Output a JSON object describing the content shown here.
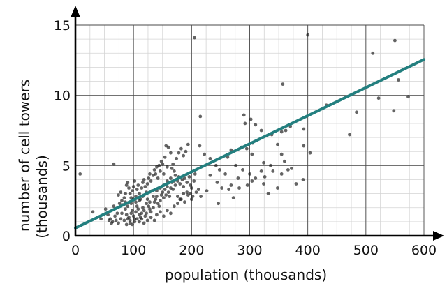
{
  "chart_data": {
    "type": "scatter",
    "xlabel": "population (thousands)",
    "ylabel": "number of cell towers",
    "ylabel_line2": "(thousands)",
    "xlim": [
      0,
      600
    ],
    "ylim": [
      0,
      15
    ],
    "x_ticks": [
      0,
      100,
      200,
      300,
      400,
      500,
      600
    ],
    "y_ticks": [
      0,
      5,
      10,
      15
    ],
    "grid": true,
    "colors": {
      "points": "#1a1a1a",
      "fit_line": "#237f7f",
      "major_grid": "#4a4a4a",
      "minor_grid": "#d4d4d4"
    },
    "fit_line": {
      "x": [
        0,
        600
      ],
      "y": [
        0.55,
        12.55
      ]
    },
    "points": [
      [
        8,
        4.4
      ],
      [
        205,
        14.1
      ],
      [
        400,
        14.3
      ],
      [
        512,
        13.0
      ],
      [
        550,
        13.9
      ],
      [
        556,
        11.1
      ],
      [
        573,
        9.9
      ],
      [
        522,
        9.8
      ],
      [
        548,
        8.9
      ],
      [
        484,
        8.8
      ],
      [
        472,
        7.2
      ],
      [
        432,
        9.3
      ],
      [
        357,
        10.8
      ],
      [
        215,
        8.5
      ],
      [
        290,
        8.6
      ],
      [
        302,
        8.3
      ],
      [
        292,
        8.0
      ],
      [
        310,
        7.9
      ],
      [
        320,
        7.5
      ],
      [
        338,
        7.2
      ],
      [
        355,
        7.4
      ],
      [
        362,
        7.5
      ],
      [
        370,
        7.8
      ],
      [
        393,
        7.6
      ],
      [
        393,
        6.4
      ],
      [
        348,
        6.5
      ],
      [
        355,
        5.8
      ],
      [
        360,
        5.3
      ],
      [
        336,
        5.0
      ],
      [
        340,
        4.6
      ],
      [
        366,
        4.7
      ],
      [
        372,
        4.8
      ],
      [
        355,
        4.4
      ],
      [
        320,
        4.6
      ],
      [
        326,
        4.2
      ],
      [
        324,
        5.2
      ],
      [
        304,
        5.8
      ],
      [
        295,
        6.2
      ],
      [
        305,
        6.6
      ],
      [
        286,
        6.3
      ],
      [
        268,
        6.1
      ],
      [
        262,
        5.6
      ],
      [
        276,
        5.0
      ],
      [
        288,
        4.7
      ],
      [
        300,
        4.4
      ],
      [
        310,
        4.1
      ],
      [
        296,
        3.6
      ],
      [
        282,
        3.4
      ],
      [
        264,
        3.3
      ],
      [
        252,
        3.4
      ],
      [
        244,
        3.8
      ],
      [
        232,
        4.3
      ],
      [
        242,
        5.0
      ],
      [
        232,
        5.5
      ],
      [
        222,
        5.8
      ],
      [
        214,
        6.4
      ],
      [
        246,
        2.3
      ],
      [
        226,
        3.2
      ],
      [
        216,
        2.8
      ],
      [
        272,
        2.7
      ],
      [
        268,
        3.6
      ],
      [
        280,
        4.1
      ],
      [
        258,
        4.4
      ],
      [
        348,
        3.4
      ],
      [
        380,
        3.7
      ],
      [
        392,
        4.0
      ],
      [
        404,
        5.9
      ],
      [
        324,
        3.7
      ],
      [
        248,
        4.7
      ],
      [
        332,
        3.0
      ],
      [
        304,
        3.9
      ],
      [
        66,
        5.1
      ],
      [
        30,
        1.7
      ],
      [
        44,
        1.2
      ],
      [
        52,
        1.9
      ],
      [
        58,
        1.1
      ],
      [
        62,
        0.9
      ],
      [
        68,
        1.4
      ],
      [
        72,
        1.6
      ],
      [
        66,
        2.1
      ],
      [
        76,
        2.3
      ],
      [
        82,
        2.2
      ],
      [
        86,
        1.9
      ],
      [
        88,
        1.5
      ],
      [
        92,
        1.3
      ],
      [
        94,
        1.1
      ],
      [
        96,
        1.6
      ],
      [
        98,
        1.8
      ],
      [
        100,
        1.4
      ],
      [
        102,
        1.2
      ],
      [
        104,
        1.7
      ],
      [
        106,
        2.1
      ],
      [
        108,
        1.9
      ],
      [
        110,
        1.5
      ],
      [
        112,
        1.3
      ],
      [
        114,
        1.6
      ],
      [
        116,
        2.0
      ],
      [
        118,
        1.8
      ],
      [
        120,
        1.4
      ],
      [
        122,
        2.3
      ],
      [
        124,
        2.6
      ],
      [
        126,
        2.1
      ],
      [
        128,
        1.9
      ],
      [
        130,
        1.7
      ],
      [
        134,
        2.0
      ],
      [
        136,
        2.4
      ],
      [
        138,
        2.6
      ],
      [
        140,
        2.8
      ],
      [
        142,
        2.3
      ],
      [
        144,
        2.1
      ],
      [
        146,
        2.5
      ],
      [
        148,
        2.9
      ],
      [
        150,
        3.1
      ],
      [
        152,
        2.7
      ],
      [
        154,
        3.3
      ],
      [
        156,
        2.9
      ],
      [
        158,
        3.5
      ],
      [
        160,
        3.1
      ],
      [
        162,
        2.8
      ],
      [
        164,
        3.4
      ],
      [
        166,
        3.8
      ],
      [
        168,
        3.3
      ],
      [
        172,
        3.6
      ],
      [
        176,
        3.9
      ],
      [
        178,
        4.2
      ],
      [
        180,
        3.7
      ],
      [
        184,
        4.0
      ],
      [
        186,
        3.5
      ],
      [
        188,
        4.1
      ],
      [
        192,
        3.8
      ],
      [
        196,
        4.2
      ],
      [
        198,
        3.6
      ],
      [
        200,
        3.4
      ],
      [
        204,
        3.9
      ],
      [
        206,
        4.4
      ],
      [
        208,
        3.1
      ],
      [
        212,
        3.3
      ],
      [
        84,
        2.7
      ],
      [
        86,
        3.0
      ],
      [
        88,
        3.6
      ],
      [
        90,
        3.8
      ],
      [
        92,
        3.4
      ],
      [
        94,
        3.0
      ],
      [
        96,
        2.7
      ],
      [
        98,
        3.2
      ],
      [
        100,
        3.5
      ],
      [
        102,
        3.9
      ],
      [
        104,
        2.8
      ],
      [
        106,
        3.3
      ],
      [
        108,
        3.6
      ],
      [
        110,
        3.0
      ],
      [
        112,
        2.6
      ],
      [
        114,
        3.4
      ],
      [
        116,
        3.8
      ],
      [
        118,
        4.0
      ],
      [
        120,
        3.5
      ],
      [
        122,
        3.1
      ],
      [
        124,
        3.7
      ],
      [
        126,
        4.1
      ],
      [
        128,
        4.4
      ],
      [
        130,
        3.9
      ],
      [
        132,
        3.2
      ],
      [
        134,
        4.3
      ],
      [
        136,
        4.7
      ],
      [
        138,
        4.4
      ],
      [
        140,
        4.9
      ],
      [
        142,
        4.1
      ],
      [
        144,
        5.0
      ],
      [
        146,
        4.6
      ],
      [
        148,
        5.3
      ],
      [
        150,
        5.1
      ],
      [
        152,
        4.4
      ],
      [
        154,
        5.6
      ],
      [
        156,
        6.4
      ],
      [
        160,
        6.3
      ],
      [
        164,
        5.9
      ],
      [
        168,
        5.1
      ],
      [
        170,
        4.6
      ],
      [
        174,
        5.5
      ],
      [
        178,
        5.9
      ],
      [
        182,
        6.2
      ],
      [
        186,
        5.7
      ],
      [
        190,
        6.0
      ],
      [
        194,
        6.5
      ],
      [
        172,
        4.3
      ],
      [
        166,
        4.8
      ],
      [
        158,
        4.9
      ],
      [
        56,
        1.5
      ],
      [
        60,
        1.2
      ],
      [
        64,
        1.0
      ],
      [
        70,
        1.1
      ],
      [
        74,
        0.9
      ],
      [
        78,
        1.2
      ],
      [
        80,
        1.6
      ],
      [
        84,
        1.1
      ],
      [
        88,
        0.8
      ],
      [
        90,
        1.2
      ],
      [
        94,
        0.9
      ],
      [
        98,
        0.8
      ],
      [
        102,
        1.0
      ],
      [
        106,
        1.2
      ],
      [
        110,
        1.0
      ],
      [
        114,
        1.2
      ],
      [
        118,
        0.9
      ],
      [
        124,
        1.1
      ],
      [
        130,
        1.3
      ],
      [
        136,
        1.1
      ],
      [
        140,
        1.5
      ],
      [
        146,
        1.7
      ],
      [
        152,
        1.4
      ],
      [
        158,
        1.8
      ],
      [
        164,
        1.6
      ],
      [
        170,
        2.1
      ],
      [
        176,
        2.3
      ],
      [
        182,
        2.6
      ],
      [
        188,
        2.4
      ],
      [
        194,
        2.9
      ],
      [
        200,
        2.6
      ],
      [
        202,
        2.8
      ],
      [
        74,
        2.9
      ],
      [
        78,
        3.1
      ],
      [
        80,
        2.5
      ],
      [
        86,
        2.4
      ],
      [
        90,
        2.1
      ],
      [
        96,
        2.3
      ],
      [
        100,
        2.6
      ],
      [
        104,
        2.4
      ],
      [
        110,
        2.5
      ],
      [
        116,
        2.8
      ],
      [
        122,
        1.6
      ],
      [
        128,
        2.4
      ],
      [
        134,
        2.8
      ],
      [
        140,
        3.2
      ],
      [
        146,
        3.4
      ],
      [
        152,
        3.6
      ],
      [
        158,
        3.9
      ],
      [
        164,
        4.1
      ],
      [
        170,
        3.9
      ],
      [
        176,
        2.8
      ],
      [
        180,
        2.6
      ],
      [
        186,
        3.0
      ],
      [
        192,
        3.1
      ],
      [
        198,
        3.0
      ]
    ]
  }
}
